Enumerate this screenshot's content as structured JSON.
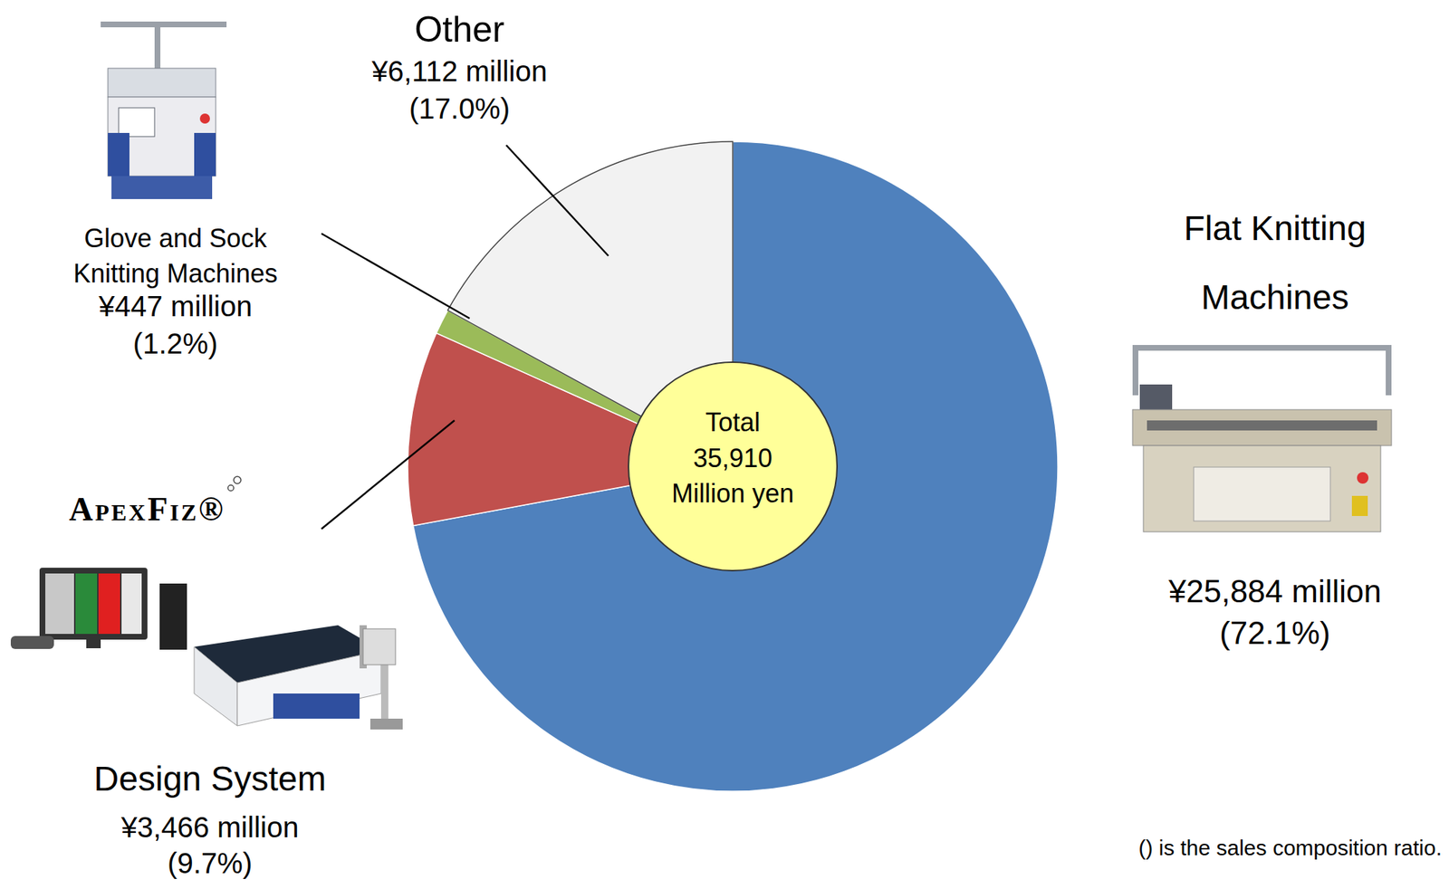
{
  "chart_data": {
    "type": "pie",
    "categories": [
      "Flat Knitting Machines",
      "Design System",
      "Glove and Sock Knitting Machines",
      "Other"
    ],
    "values": [
      25884,
      3466,
      447,
      6112
    ],
    "value_labels": [
      "¥25,884 million",
      "¥3,466 million",
      "¥447 million",
      "¥6,112 million"
    ],
    "percent_labels": [
      "(72.1%)",
      "(9.7%)",
      "(1.2%)",
      "(17.0%)"
    ],
    "colors": [
      "#4f81bd",
      "#c0504d",
      "#9bbb59",
      "#f2f2f2"
    ],
    "total": 35910,
    "total_label": "35,910",
    "center_title": "Total",
    "center_unit": "Million yen",
    "brand": "ApexFiz®",
    "note": "() is the sales composition ratio."
  }
}
